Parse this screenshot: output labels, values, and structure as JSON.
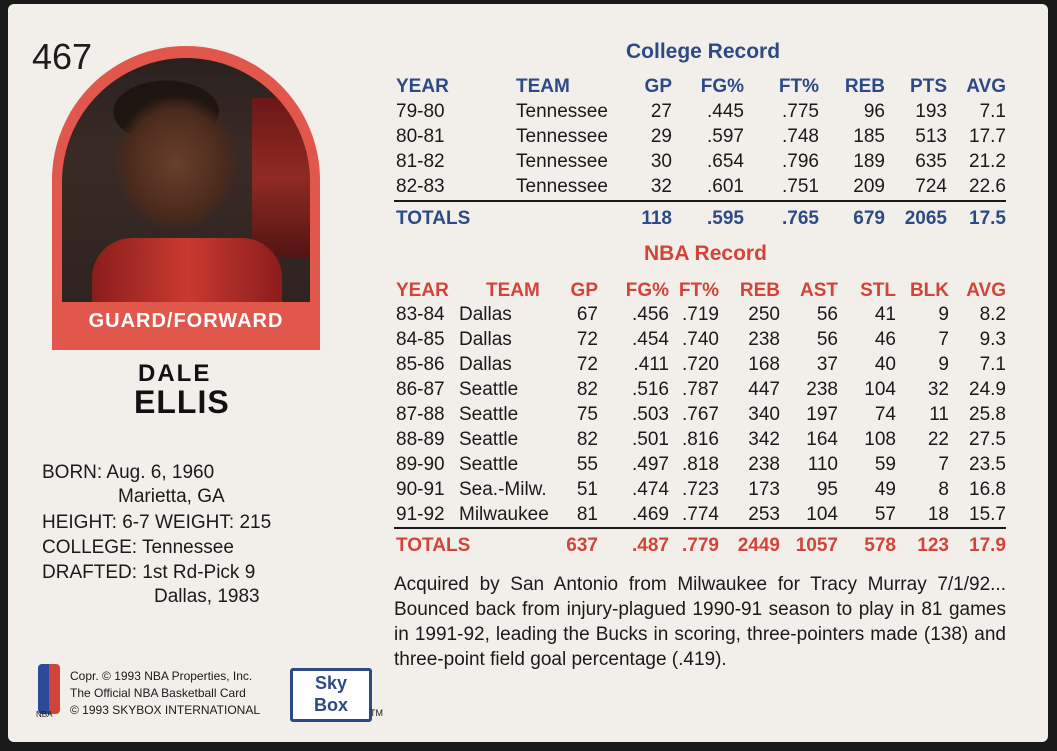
{
  "card": {
    "number": "467",
    "position": "GUARD/FORWARD",
    "first_name": "DALE",
    "last_name": "ELLIS"
  },
  "bio": {
    "born_label": "BORN:",
    "born_value": "Aug. 6, 1960",
    "born_place": "Marietta, GA",
    "height_label": "HEIGHT:",
    "height_value": "6-7",
    "weight_label": "WEIGHT:",
    "weight_value": "215",
    "college_label": "COLLEGE:",
    "college_value": "Tennessee",
    "drafted_label": "DRAFTED:",
    "drafted_value": "1st Rd-Pick 9",
    "drafted_team": "Dallas, 1983"
  },
  "college": {
    "title": "College Record",
    "headers": [
      "YEAR",
      "TEAM",
      "GP",
      "FG%",
      "FT%",
      "REB",
      "PTS",
      "AVG"
    ],
    "rows": [
      [
        "79-80",
        "Tennessee",
        "27",
        ".445",
        ".775",
        "96",
        "193",
        "7.1"
      ],
      [
        "80-81",
        "Tennessee",
        "29",
        ".597",
        ".748",
        "185",
        "513",
        "17.7"
      ],
      [
        "81-82",
        "Tennessee",
        "30",
        ".654",
        ".796",
        "189",
        "635",
        "21.2"
      ],
      [
        "82-83",
        "Tennessee",
        "32",
        ".601",
        ".751",
        "209",
        "724",
        "22.6"
      ]
    ],
    "totals": [
      "TOTALS",
      "118",
      ".595",
      ".765",
      "679",
      "2065",
      "17.5"
    ]
  },
  "nba": {
    "title": "NBA Record",
    "headers": [
      "YEAR",
      "TEAM",
      "GP",
      "FG%",
      "FT%",
      "REB",
      "AST",
      "STL",
      "BLK",
      "AVG"
    ],
    "rows": [
      [
        "83-84",
        "Dallas",
        "67",
        ".456",
        ".719",
        "250",
        "56",
        "41",
        "9",
        "8.2"
      ],
      [
        "84-85",
        "Dallas",
        "72",
        ".454",
        ".740",
        "238",
        "56",
        "46",
        "7",
        "9.3"
      ],
      [
        "85-86",
        "Dallas",
        "72",
        ".411",
        ".720",
        "168",
        "37",
        "40",
        "9",
        "7.1"
      ],
      [
        "86-87",
        "Seattle",
        "82",
        ".516",
        ".787",
        "447",
        "238",
        "104",
        "32",
        "24.9"
      ],
      [
        "87-88",
        "Seattle",
        "75",
        ".503",
        ".767",
        "340",
        "197",
        "74",
        "11",
        "25.8"
      ],
      [
        "88-89",
        "Seattle",
        "82",
        ".501",
        ".816",
        "342",
        "164",
        "108",
        "22",
        "27.5"
      ],
      [
        "89-90",
        "Seattle",
        "55",
        ".497",
        ".818",
        "238",
        "110",
        "59",
        "7",
        "23.5"
      ],
      [
        "90-91",
        "Sea.-Milw.",
        "51",
        ".474",
        ".723",
        "173",
        "95",
        "49",
        "8",
        "16.8"
      ],
      [
        "91-92",
        "Milwaukee",
        "81",
        ".469",
        ".774",
        "253",
        "104",
        "57",
        "18",
        "15.7"
      ]
    ],
    "totals": [
      "TOTALS",
      "637",
      ".487",
      ".779",
      "2449",
      "1057",
      "578",
      "123",
      "17.9"
    ]
  },
  "notes": "Acquired by San Antonio from Milwaukee for Tracy Murray 7/1/92... Bounced back from injury-plagued 1990-91 season to play in 81 games in 1991-92, leading the Bucks in scoring, three-pointers made (138) and three-point field goal percentage (.419).",
  "footer": {
    "nba_logo_text": "NBA",
    "copyright_1": "Copr. © 1993 NBA Properties, Inc.",
    "copyright_2": "The Official NBA Basketball Card",
    "copyright_3": "© 1993 SKYBOX INTERNATIONAL",
    "skybox_top": "Sky",
    "skybox_bottom": "Box",
    "tm": "TM"
  },
  "colors": {
    "navy": "#2e4a86",
    "red": "#d2443a",
    "card_bg": "#f2efea"
  }
}
